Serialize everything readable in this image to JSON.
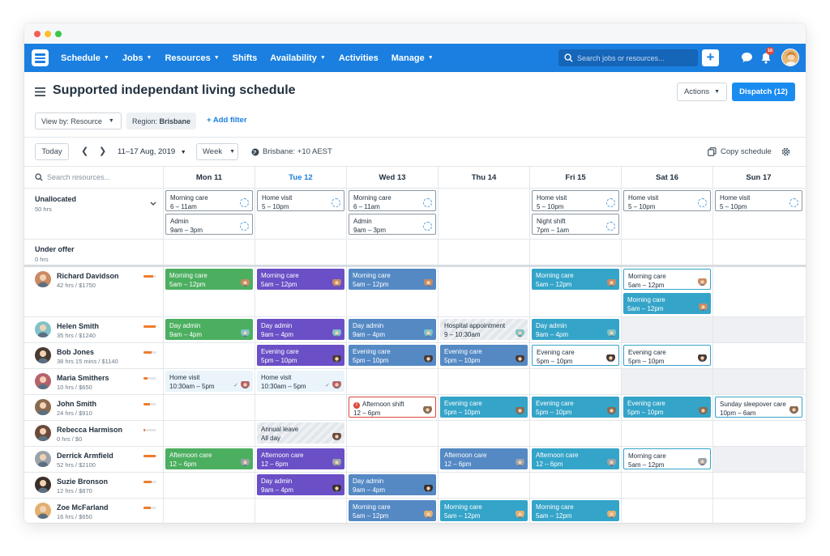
{
  "nav": {
    "menu": [
      {
        "label": "Schedule",
        "caret": true
      },
      {
        "label": "Jobs",
        "caret": true
      },
      {
        "label": "Resources",
        "caret": true
      },
      {
        "label": "Shifts",
        "caret": false
      },
      {
        "label": "Availability",
        "caret": true
      },
      {
        "label": "Activities",
        "caret": false
      },
      {
        "label": "Manage",
        "caret": true
      }
    ],
    "search_placeholder": "Search jobs or resources...",
    "plus_label": "+",
    "notification_count": "16"
  },
  "header": {
    "title": "Supported independant living schedule",
    "actions_label": "Actions",
    "dispatch_label": "Dispatch (12)",
    "viewby_label": "View by: Resource",
    "region_prefix": "Region: ",
    "region_value": "Brisbane",
    "add_filter_label": "+ Add filter"
  },
  "toolbar": {
    "today_label": "Today",
    "date_range": "11–17 Aug, 2019",
    "week_label": "Week",
    "timezone": "Brisbane: +10 AEST",
    "copy_label": "Copy schedule"
  },
  "grid": {
    "search_placeholder": "Search resources...",
    "days": [
      "Mon 11",
      "Tue 12",
      "Wed 13",
      "Thu 14",
      "Fri 15",
      "Sat 16",
      "Sun 17"
    ],
    "today_index": 1,
    "unallocated": {
      "title": "Unallocated",
      "sub": "50 hrs"
    },
    "under_offer": {
      "title": "Under offer",
      "sub": "0 hrs"
    },
    "resources": [
      {
        "name": "Richard Davidson",
        "hours": "42 hrs / $1750",
        "util": 0.75,
        "avatar": "#c98b63"
      },
      {
        "name": "Helen Smith",
        "hours": "35 hrs / $1240",
        "util": 0.95,
        "avatar": "#7fc3c8"
      },
      {
        "name": "Bob Jones",
        "hours": "38 hrs 15 mins / $1140",
        "util": 0.6,
        "avatar": "#4a3a34"
      },
      {
        "name": "Maria Smithers",
        "hours": "10 hrs / $650",
        "util": 0.3,
        "avatar": "#b5636b"
      },
      {
        "name": "John Smith",
        "hours": "24 hrs / $910",
        "util": 0.5,
        "avatar": "#8b6b4f"
      },
      {
        "name": "Rebecca Harmison",
        "hours": "0 hrs / $0",
        "util": 0.1,
        "avatar": "#6b4a3c"
      },
      {
        "name": "Derrick Armfield",
        "hours": "52 hrs / $2100",
        "util": 0.95,
        "avatar": "#9aa3ab"
      },
      {
        "name": "Suzie Bronson",
        "hours": "12 hrs / $870",
        "util": 0.6,
        "avatar": "#3a2e2a"
      },
      {
        "name": "Zoe McFarland",
        "hours": "16 hrs / $650",
        "util": 0.55,
        "avatar": "#e0b070"
      }
    ],
    "shifts": [
      {
        "row": "unalloc",
        "slot": 0,
        "day": 0,
        "title": "Morning care",
        "time": "6 – 11am",
        "style": "outline",
        "marker": "pending"
      },
      {
        "row": "unalloc",
        "slot": 1,
        "day": 0,
        "title": "Admin",
        "time": "9am – 3pm",
        "style": "outline",
        "marker": "pending"
      },
      {
        "row": "unalloc",
        "slot": 0,
        "day": 1,
        "title": "Home visit",
        "time": "5 – 10pm",
        "style": "outline",
        "marker": "pending"
      },
      {
        "row": "unalloc",
        "slot": 0,
        "day": 2,
        "title": "Morning care",
        "time": "6 – 11am",
        "style": "outline",
        "marker": "pending"
      },
      {
        "row": "unalloc",
        "slot": 1,
        "day": 2,
        "title": "Admin",
        "time": "9am – 3pm",
        "style": "outline",
        "marker": "pending"
      },
      {
        "row": "unalloc",
        "slot": 0,
        "day": 4,
        "title": "Home visit",
        "time": "5 – 10pm",
        "style": "outline",
        "marker": "pending"
      },
      {
        "row": "unalloc",
        "slot": 1,
        "day": 4,
        "title": "Night shift",
        "time": "7pm – 1am",
        "style": "outline",
        "marker": "pending"
      },
      {
        "row": "unalloc",
        "slot": 0,
        "day": 5,
        "title": "Home visit",
        "time": "5 – 10pm",
        "style": "outline",
        "marker": "pending"
      },
      {
        "row": "unalloc",
        "slot": 0,
        "day": 6,
        "title": "Home visit",
        "time": "5 – 10pm",
        "style": "outline",
        "marker": "pending"
      },
      {
        "row": 0,
        "slot": 0,
        "day": 0,
        "title": "Morning care",
        "time": "5am – 12pm",
        "style": "green"
      },
      {
        "row": 0,
        "slot": 0,
        "day": 1,
        "title": "Morning care",
        "time": "5am – 12pm",
        "style": "purple"
      },
      {
        "row": 0,
        "slot": 0,
        "day": 2,
        "title": "Morning care",
        "time": "5am – 12pm",
        "style": "steel"
      },
      {
        "row": 0,
        "slot": 0,
        "day": 4,
        "title": "Morning care",
        "time": "5am – 12pm",
        "style": "teal"
      },
      {
        "row": 0,
        "slot": 0,
        "day": 5,
        "title": "Morning care",
        "time": "5am – 12pm",
        "style": "outline-teal"
      },
      {
        "row": 0,
        "slot": 1,
        "day": 5,
        "title": "Morning care",
        "time": "5am – 12pm",
        "style": "teal"
      },
      {
        "row": 1,
        "slot": 0,
        "day": 0,
        "title": "Day admin",
        "time": "9am – 4pm",
        "style": "green"
      },
      {
        "row": 1,
        "slot": 0,
        "day": 1,
        "title": "Day admin",
        "time": "9am – 4pm",
        "style": "purple"
      },
      {
        "row": 1,
        "slot": 0,
        "day": 2,
        "title": "Day admin",
        "time": "9am – 4pm",
        "style": "steel"
      },
      {
        "row": 1,
        "slot": 0,
        "day": 3,
        "title": "Hospital appointment",
        "time": "9 – 10:30am",
        "style": "striped"
      },
      {
        "row": 1,
        "slot": 0,
        "day": 4,
        "title": "Day admin",
        "time": "9am – 4pm",
        "style": "teal"
      },
      {
        "row": 2,
        "slot": 0,
        "day": 1,
        "title": "Evening care",
        "time": "5pm – 10pm",
        "style": "purple"
      },
      {
        "row": 2,
        "slot": 0,
        "day": 2,
        "title": "Evening care",
        "time": "5pm – 10pm",
        "style": "steel"
      },
      {
        "row": 2,
        "slot": 0,
        "day": 3,
        "title": "Evening care",
        "time": "5pm – 10pm",
        "style": "steel"
      },
      {
        "row": 2,
        "slot": 0,
        "day": 4,
        "title": "Evening care",
        "time": "5pm – 10pm",
        "style": "outline-teal"
      },
      {
        "row": 2,
        "slot": 0,
        "day": 5,
        "title": "Evening care",
        "time": "5pm – 10pm",
        "style": "outline-teal"
      },
      {
        "row": 3,
        "slot": 0,
        "day": 0,
        "title": "Home visit",
        "time": "10:30am – 5pm",
        "style": "light",
        "tick": true
      },
      {
        "row": 3,
        "slot": 0,
        "day": 1,
        "title": "Home visit",
        "time": "10:30am – 5pm",
        "style": "light",
        "tick": true
      },
      {
        "row": 4,
        "slot": 0,
        "day": 2,
        "title": "Afternoon shift",
        "time": "12 – 6pm",
        "style": "outline-red",
        "alert": true
      },
      {
        "row": 4,
        "slot": 0,
        "day": 3,
        "title": "Evening care",
        "time": "5pm – 10pm",
        "style": "teal"
      },
      {
        "row": 4,
        "slot": 0,
        "day": 4,
        "title": "Evening care",
        "time": "5pm – 10pm",
        "style": "teal"
      },
      {
        "row": 4,
        "slot": 0,
        "day": 5,
        "title": "Evening care",
        "time": "5pm – 10pm",
        "style": "teal"
      },
      {
        "row": 4,
        "slot": 0,
        "day": 6,
        "title": "Sunday sleepover care",
        "time": "10pm – 6am",
        "style": "outline-teal"
      },
      {
        "row": 5,
        "slot": 0,
        "day": 1,
        "title": "Annual leave",
        "time": "All day",
        "style": "striped"
      },
      {
        "row": 6,
        "slot": 0,
        "day": 0,
        "title": "Afternoon care",
        "time": "12 – 6pm",
        "style": "green"
      },
      {
        "row": 6,
        "slot": 0,
        "day": 1,
        "title": "Afternoon care",
        "time": "12 – 6pm",
        "style": "purple"
      },
      {
        "row": 6,
        "slot": 0,
        "day": 3,
        "title": "Afternoon care",
        "time": "12 – 6pm",
        "style": "steel"
      },
      {
        "row": 6,
        "slot": 0,
        "day": 4,
        "title": "Afternoon care",
        "time": "12 – 6pm",
        "style": "teal"
      },
      {
        "row": 6,
        "slot": 0,
        "day": 5,
        "title": "Morning care",
        "time": "5am – 12pm",
        "style": "outline-teal"
      },
      {
        "row": 7,
        "slot": 0,
        "day": 1,
        "title": "Day admin",
        "time": "9am – 4pm",
        "style": "purple"
      },
      {
        "row": 7,
        "slot": 0,
        "day": 2,
        "title": "Day admin",
        "time": "9am – 4pm",
        "style": "steel"
      },
      {
        "row": 8,
        "slot": 0,
        "day": 2,
        "title": "Morning care",
        "time": "5am – 12pm",
        "style": "steel"
      },
      {
        "row": 8,
        "slot": 0,
        "day": 3,
        "title": "Morning care",
        "time": "5am – 12pm",
        "style": "teal"
      },
      {
        "row": 8,
        "slot": 0,
        "day": 4,
        "title": "Morning care",
        "time": "5am – 12pm",
        "style": "teal"
      }
    ],
    "gray_cells": [
      {
        "row": 1,
        "day": 5
      },
      {
        "row": 1,
        "day": 6
      },
      {
        "row": 3,
        "day": 5
      },
      {
        "row": 3,
        "day": 6
      },
      {
        "row": 6,
        "day": 6
      }
    ]
  },
  "colors": {
    "nav": "#1a7fe0",
    "dispatch": "#1a8cf0",
    "green": "#4caf60",
    "purple": "#6a4fc6",
    "steel": "#5489c4",
    "teal": "#35a4c9",
    "alert": "#e0473b",
    "util": "#f07c2a"
  }
}
